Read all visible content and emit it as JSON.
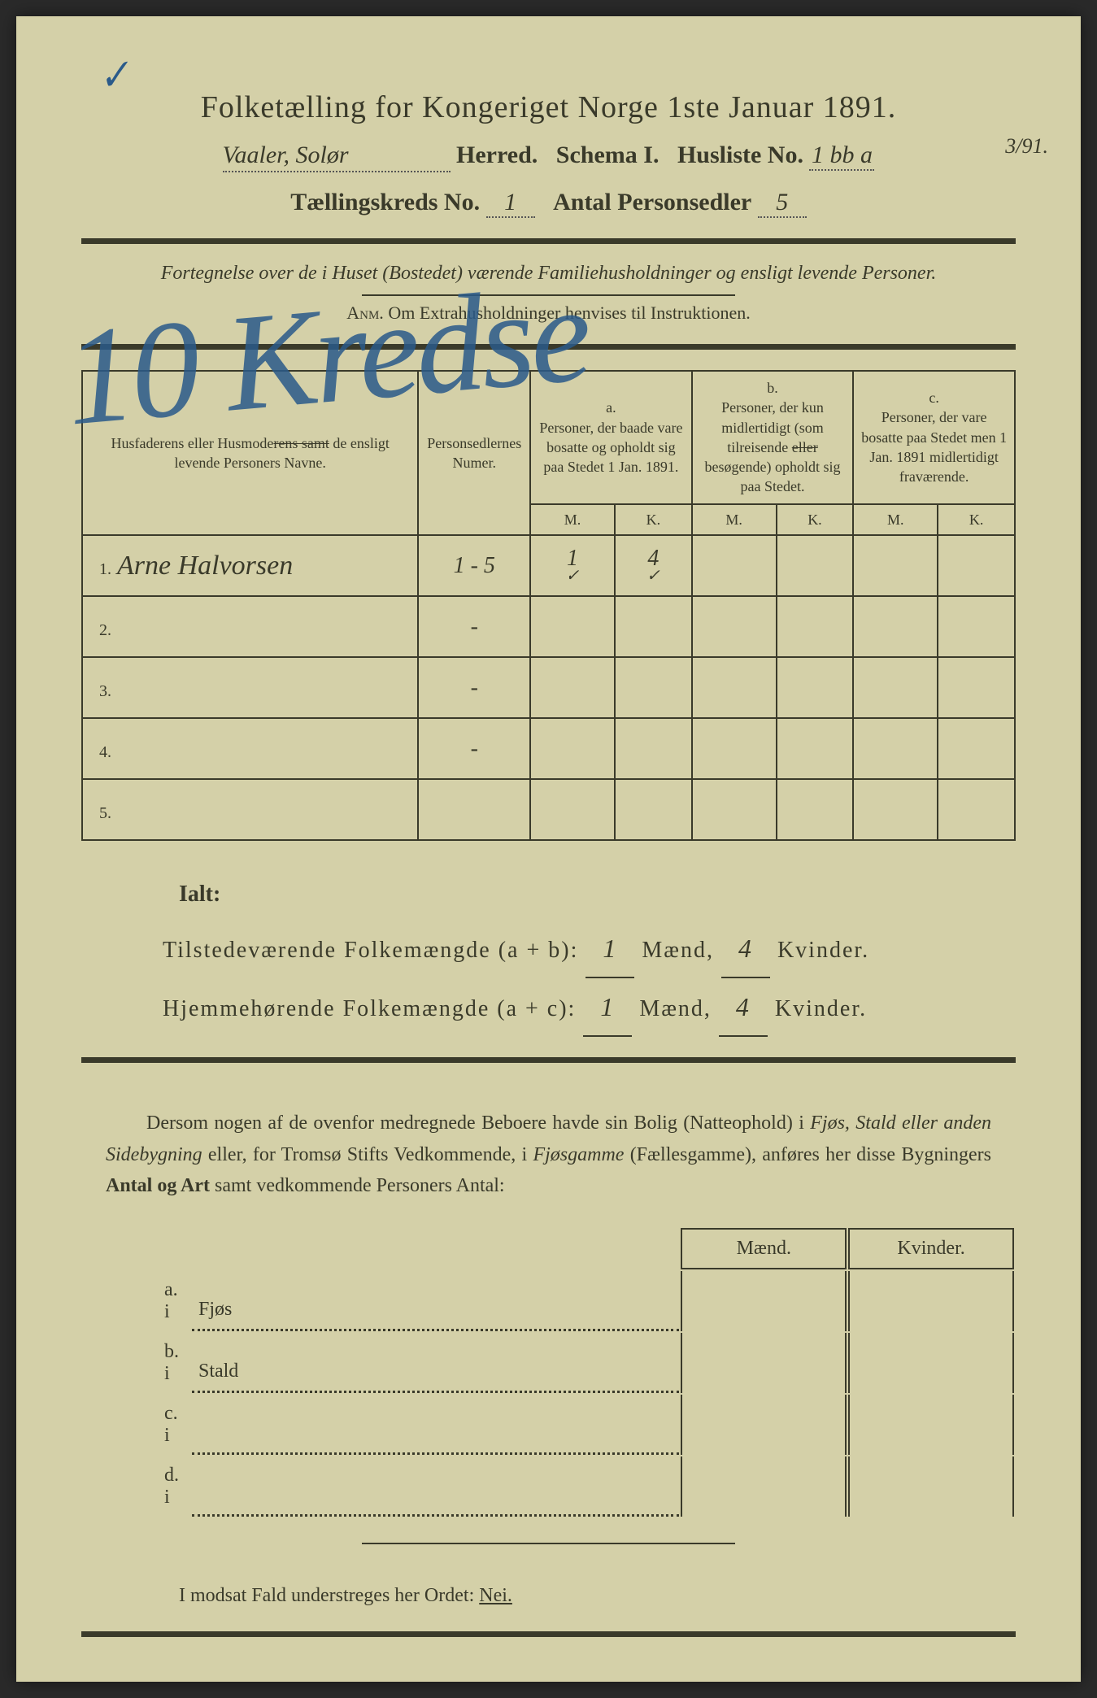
{
  "document": {
    "title": "Folketælling for Kongeriget Norge 1ste Januar 1891.",
    "herred_name": "Vaaler, Solør",
    "herred_label": "Herred.",
    "schema_label": "Schema I.",
    "husliste_label": "Husliste No.",
    "husliste_no": "1 bb a",
    "margin_fraction": "3/91.",
    "kreds_label": "Tællingskreds No.",
    "kreds_no": "1",
    "sedler_label": "Antal Personsedler",
    "sedler_no": "5",
    "fortegnelse": "Fortegnelse over de i Huset (Bostedet) værende Familiehusholdninger og ensligt levende Personer.",
    "anm_label": "Anm.",
    "anm_text": "Om Extrahusholdninger henvises til Instruktionen.",
    "big_annotation": "10 Kredse",
    "checkmark": "✓"
  },
  "table": {
    "headers": {
      "name": "Husfaderens eller Husmoderens samt de ensligt levende Personers Navne.",
      "name_struck": "samt",
      "numer": "Personsedlernes Numer.",
      "col_a_label": "a.",
      "col_a": "Personer, der baade vare bosatte og opholdt sig paa Stedet 1 Jan. 1891.",
      "col_b_label": "b.",
      "col_b": "Personer, der kun midlertidigt (som tilreisende eller besøgende) opholdt sig paa Stedet.",
      "col_b_struck": "eller",
      "col_c_label": "c.",
      "col_c": "Personer, der vare bosatte paa Stedet men 1 Jan. 1891 midlertidigt fraværende.",
      "m": "M.",
      "k": "K."
    },
    "rows": [
      {
        "num": "1.",
        "name": "Arne Halvorsen",
        "sedler": "1 - 5",
        "a_m": "1",
        "a_k": "4",
        "b_m": "",
        "b_k": "",
        "c_m": "",
        "c_k": ""
      },
      {
        "num": "2.",
        "name": "",
        "sedler": "-",
        "a_m": "",
        "a_k": "",
        "b_m": "",
        "b_k": "",
        "c_m": "",
        "c_k": ""
      },
      {
        "num": "3.",
        "name": "",
        "sedler": "-",
        "a_m": "",
        "a_k": "",
        "b_m": "",
        "b_k": "",
        "c_m": "",
        "c_k": ""
      },
      {
        "num": "4.",
        "name": "",
        "sedler": "-",
        "a_m": "",
        "a_k": "",
        "b_m": "",
        "b_k": "",
        "c_m": "",
        "c_k": ""
      },
      {
        "num": "5.",
        "name": "",
        "sedler": "",
        "a_m": "",
        "a_k": "",
        "b_m": "",
        "b_k": "",
        "c_m": "",
        "c_k": ""
      }
    ]
  },
  "totals": {
    "ialt": "Ialt:",
    "line1_label": "Tilstedeværende Folkemængde (a + b):",
    "line2_label": "Hjemmehørende Folkemængde (a + c):",
    "maend": "Mænd,",
    "kvinder": "Kvinder.",
    "t_m": "1",
    "t_k": "4",
    "h_m": "1",
    "h_k": "4"
  },
  "paragraph": {
    "text": "Dersom nogen af de ovenfor medregnede Beboere havde sin Bolig (Natteophold) i Fjøs, Stald eller anden Sidebygning eller, for Tromsø Stifts Vedkommende, i Fjøsgamme (Fællesgamme), anføres her disse Bygningers Antal og Art samt vedkommende Personers Antal:"
  },
  "subtable": {
    "maend": "Mænd.",
    "kvinder": "Kvinder.",
    "rows": [
      {
        "label": "a.  i",
        "name": "Fjøs"
      },
      {
        "label": "b.  i",
        "name": "Stald"
      },
      {
        "label": "c.  i",
        "name": ""
      },
      {
        "label": "d.  i",
        "name": ""
      }
    ]
  },
  "final": {
    "text_pre": "I modsat Fald understreges her Ordet: ",
    "nei": "Nei."
  },
  "styling": {
    "paper_bg": "#d4d0a8",
    "ink": "#3a3a2a",
    "blue_ink": "#2a5a8a",
    "font_body": "Georgia, 'Times New Roman', serif",
    "font_handwritten": "'Brush Script MT', cursive"
  }
}
